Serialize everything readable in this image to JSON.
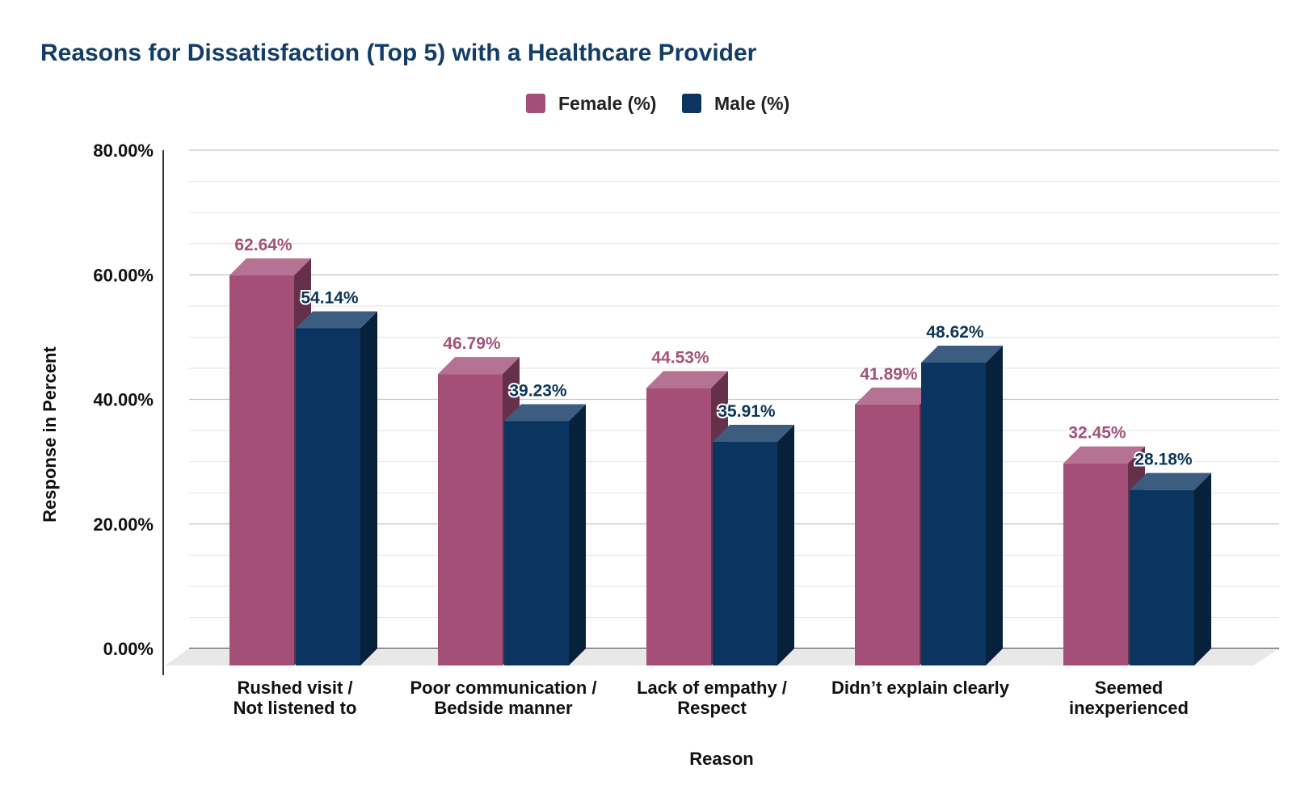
{
  "chart_data": {
    "type": "bar",
    "title": "Reasons for Dissatisfaction (Top 5) with a Healthcare Provider",
    "xlabel": "Reason",
    "ylabel": "Response in Percent",
    "ylim": [
      0,
      80
    ],
    "yticks": [
      0,
      20,
      40,
      60,
      80
    ],
    "ytick_labels": [
      "0.00%",
      "20.00%",
      "40.00%",
      "60.00%",
      "80.00%"
    ],
    "categories": [
      [
        "Rushed visit /",
        "Not listened to"
      ],
      [
        "Poor communication /",
        "Bedside manner"
      ],
      [
        "Lack of empathy /",
        "Respect"
      ],
      [
        "Didn’t explain clearly"
      ],
      [
        "Seemed",
        "inexperienced"
      ]
    ],
    "series": [
      {
        "name": "Female (%)",
        "color": "#a34f77",
        "values": [
          62.64,
          46.79,
          44.53,
          41.89,
          32.45
        ],
        "labels": [
          "62.64%",
          "46.79%",
          "44.53%",
          "41.89%",
          "32.45%"
        ]
      },
      {
        "name": "Male (%)",
        "color": "#0b3560",
        "values": [
          54.14,
          39.23,
          35.91,
          48.62,
          28.18
        ],
        "labels": [
          "54.14%",
          "39.23%",
          "35.91%",
          "48.62%",
          "28.18%"
        ]
      }
    ],
    "legend": "top-center",
    "grid": true
  }
}
